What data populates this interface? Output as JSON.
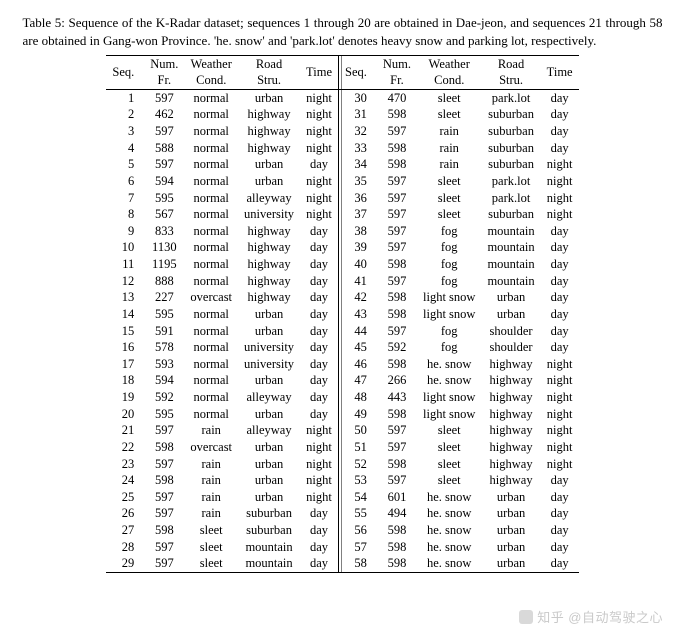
{
  "caption": "Table 5: Sequence of the K-Radar dataset; sequences 1 through 20 are obtained in Dae-jeon, and sequences 21 through 58 are obtained in Gang-won Province. 'he. snow' and 'park.lot' denotes heavy snow and parking lot, respectively.",
  "headers": {
    "seq": "Seq.",
    "numfr_l1": "Num.",
    "numfr_l2": "Fr.",
    "weather_l1": "Weather",
    "weather_l2": "Cond.",
    "road_l1": "Road",
    "road_l2": "Stru.",
    "time": "Time"
  },
  "table": {
    "type": "table",
    "font_family": "Times New Roman",
    "font_size_pt": 9,
    "rule_color": "#000000",
    "background_color": "#ffffff",
    "columns_left": [
      "Seq.",
      "Num. Fr.",
      "Weather Cond.",
      "Road Stru.",
      "Time"
    ],
    "columns_right": [
      "Seq.",
      "Num. Fr.",
      "Weather Cond.",
      "Road Stru.",
      "Time"
    ],
    "left": [
      {
        "seq": 1,
        "fr": 597,
        "weather": "normal",
        "road": "urban",
        "time": "night"
      },
      {
        "seq": 2,
        "fr": 462,
        "weather": "normal",
        "road": "highway",
        "time": "night"
      },
      {
        "seq": 3,
        "fr": 597,
        "weather": "normal",
        "road": "highway",
        "time": "night"
      },
      {
        "seq": 4,
        "fr": 588,
        "weather": "normal",
        "road": "highway",
        "time": "night"
      },
      {
        "seq": 5,
        "fr": 597,
        "weather": "normal",
        "road": "urban",
        "time": "day"
      },
      {
        "seq": 6,
        "fr": 594,
        "weather": "normal",
        "road": "urban",
        "time": "night"
      },
      {
        "seq": 7,
        "fr": 595,
        "weather": "normal",
        "road": "alleyway",
        "time": "night"
      },
      {
        "seq": 8,
        "fr": 567,
        "weather": "normal",
        "road": "university",
        "time": "night"
      },
      {
        "seq": 9,
        "fr": 833,
        "weather": "normal",
        "road": "highway",
        "time": "day"
      },
      {
        "seq": 10,
        "fr": 1130,
        "weather": "normal",
        "road": "highway",
        "time": "day"
      },
      {
        "seq": 11,
        "fr": 1195,
        "weather": "normal",
        "road": "highway",
        "time": "day"
      },
      {
        "seq": 12,
        "fr": 888,
        "weather": "normal",
        "road": "highway",
        "time": "day"
      },
      {
        "seq": 13,
        "fr": 227,
        "weather": "overcast",
        "road": "highway",
        "time": "day"
      },
      {
        "seq": 14,
        "fr": 595,
        "weather": "normal",
        "road": "urban",
        "time": "day"
      },
      {
        "seq": 15,
        "fr": 591,
        "weather": "normal",
        "road": "urban",
        "time": "day"
      },
      {
        "seq": 16,
        "fr": 578,
        "weather": "normal",
        "road": "university",
        "time": "day"
      },
      {
        "seq": 17,
        "fr": 593,
        "weather": "normal",
        "road": "university",
        "time": "day"
      },
      {
        "seq": 18,
        "fr": 594,
        "weather": "normal",
        "road": "urban",
        "time": "day"
      },
      {
        "seq": 19,
        "fr": 592,
        "weather": "normal",
        "road": "alleyway",
        "time": "day"
      },
      {
        "seq": 20,
        "fr": 595,
        "weather": "normal",
        "road": "urban",
        "time": "day"
      },
      {
        "seq": 21,
        "fr": 597,
        "weather": "rain",
        "road": "alleyway",
        "time": "night"
      },
      {
        "seq": 22,
        "fr": 598,
        "weather": "overcast",
        "road": "urban",
        "time": "night"
      },
      {
        "seq": 23,
        "fr": 597,
        "weather": "rain",
        "road": "urban",
        "time": "night"
      },
      {
        "seq": 24,
        "fr": 598,
        "weather": "rain",
        "road": "urban",
        "time": "night"
      },
      {
        "seq": 25,
        "fr": 597,
        "weather": "rain",
        "road": "urban",
        "time": "night"
      },
      {
        "seq": 26,
        "fr": 597,
        "weather": "rain",
        "road": "suburban",
        "time": "day"
      },
      {
        "seq": 27,
        "fr": 598,
        "weather": "sleet",
        "road": "suburban",
        "time": "day"
      },
      {
        "seq": 28,
        "fr": 597,
        "weather": "sleet",
        "road": "mountain",
        "time": "day"
      },
      {
        "seq": 29,
        "fr": 597,
        "weather": "sleet",
        "road": "mountain",
        "time": "day"
      }
    ],
    "right": [
      {
        "seq": 30,
        "fr": 470,
        "weather": "sleet",
        "road": "park.lot",
        "time": "day"
      },
      {
        "seq": 31,
        "fr": 598,
        "weather": "sleet",
        "road": "suburban",
        "time": "day"
      },
      {
        "seq": 32,
        "fr": 597,
        "weather": "rain",
        "road": "suburban",
        "time": "day"
      },
      {
        "seq": 33,
        "fr": 598,
        "weather": "rain",
        "road": "suburban",
        "time": "day"
      },
      {
        "seq": 34,
        "fr": 598,
        "weather": "rain",
        "road": "suburban",
        "time": "night"
      },
      {
        "seq": 35,
        "fr": 597,
        "weather": "sleet",
        "road": "park.lot",
        "time": "night"
      },
      {
        "seq": 36,
        "fr": 597,
        "weather": "sleet",
        "road": "park.lot",
        "time": "night"
      },
      {
        "seq": 37,
        "fr": 597,
        "weather": "sleet",
        "road": "suburban",
        "time": "night"
      },
      {
        "seq": 38,
        "fr": 597,
        "weather": "fog",
        "road": "mountain",
        "time": "day"
      },
      {
        "seq": 39,
        "fr": 597,
        "weather": "fog",
        "road": "mountain",
        "time": "day"
      },
      {
        "seq": 40,
        "fr": 598,
        "weather": "fog",
        "road": "mountain",
        "time": "day"
      },
      {
        "seq": 41,
        "fr": 597,
        "weather": "fog",
        "road": "mountain",
        "time": "day"
      },
      {
        "seq": 42,
        "fr": 598,
        "weather": "light snow",
        "road": "urban",
        "time": "day"
      },
      {
        "seq": 43,
        "fr": 598,
        "weather": "light snow",
        "road": "urban",
        "time": "day"
      },
      {
        "seq": 44,
        "fr": 597,
        "weather": "fog",
        "road": "shoulder",
        "time": "day"
      },
      {
        "seq": 45,
        "fr": 592,
        "weather": "fog",
        "road": "shoulder",
        "time": "day"
      },
      {
        "seq": 46,
        "fr": 598,
        "weather": "he. snow",
        "road": "highway",
        "time": "night"
      },
      {
        "seq": 47,
        "fr": 266,
        "weather": "he. snow",
        "road": "highway",
        "time": "night"
      },
      {
        "seq": 48,
        "fr": 443,
        "weather": "light snow",
        "road": "highway",
        "time": "night"
      },
      {
        "seq": 49,
        "fr": 598,
        "weather": "light snow",
        "road": "highway",
        "time": "night"
      },
      {
        "seq": 50,
        "fr": 597,
        "weather": "sleet",
        "road": "highway",
        "time": "night"
      },
      {
        "seq": 51,
        "fr": 597,
        "weather": "sleet",
        "road": "highway",
        "time": "night"
      },
      {
        "seq": 52,
        "fr": 598,
        "weather": "sleet",
        "road": "highway",
        "time": "night"
      },
      {
        "seq": 53,
        "fr": 597,
        "weather": "sleet",
        "road": "highway",
        "time": "day"
      },
      {
        "seq": 54,
        "fr": 601,
        "weather": "he. snow",
        "road": "urban",
        "time": "day"
      },
      {
        "seq": 55,
        "fr": 494,
        "weather": "he. snow",
        "road": "urban",
        "time": "day"
      },
      {
        "seq": 56,
        "fr": 598,
        "weather": "he. snow",
        "road": "urban",
        "time": "day"
      },
      {
        "seq": 57,
        "fr": 598,
        "weather": "he. snow",
        "road": "urban",
        "time": "day"
      },
      {
        "seq": 58,
        "fr": 598,
        "weather": "he. snow",
        "road": "urban",
        "time": "day"
      }
    ]
  },
  "watermark": "知乎 @自动驾驶之心"
}
